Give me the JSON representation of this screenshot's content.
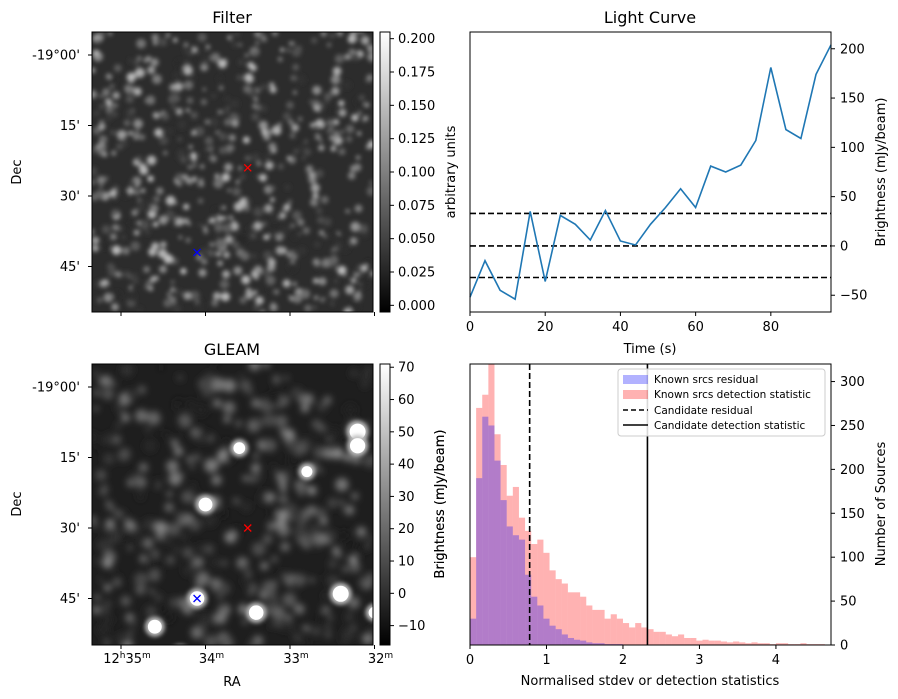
{
  "chart_data": [
    {
      "type": "heatmap",
      "title": "Filter",
      "ylabel": "Dec",
      "yticks": [
        "-19°00'",
        "15'",
        "30'",
        "45'"
      ],
      "colorbar": {
        "label": "arbitrary units",
        "ticks": [
          "0.000",
          "0.025",
          "0.050",
          "0.075",
          "0.100",
          "0.125",
          "0.150",
          "0.175",
          "0.200"
        ],
        "range": [
          -0.005,
          0.205
        ]
      },
      "markers": [
        {
          "symbol": "x",
          "color": "#ff0000",
          "ra_min": 33.5,
          "dec_arcmin": 24
        },
        {
          "symbol": "x",
          "color": "#0000ff",
          "ra_min": 34.1,
          "dec_arcmin": 42
        }
      ],
      "colormap": "gray"
    },
    {
      "type": "line",
      "title": "Light Curve",
      "xlabel": "Time (s)",
      "ylabel": "Brightness (mJy/beam)",
      "xlim": [
        0,
        96
      ],
      "ylim": [
        -67,
        217
      ],
      "xticks": [
        "0",
        "20",
        "40",
        "60",
        "80"
      ],
      "yticks": [
        "-50",
        "0",
        "50",
        "100",
        "150",
        "200"
      ],
      "series": [
        {
          "color": "#1f77b4",
          "x": [
            0,
            4,
            8,
            12,
            16,
            20,
            24,
            28,
            32,
            36,
            40,
            44,
            48,
            52,
            56,
            60,
            64,
            68,
            72,
            76,
            80,
            84,
            88,
            92,
            96
          ],
          "y": [
            -52,
            -15,
            -45,
            -54,
            35,
            -36,
            31,
            22,
            6,
            36,
            5,
            1,
            22,
            39,
            58,
            39,
            81,
            75,
            82,
            107,
            181,
            118,
            109,
            174,
            204
          ]
        }
      ],
      "hlines": [
        {
          "y": 33,
          "style": "dashed",
          "color": "#000000"
        },
        {
          "y": 0,
          "style": "dashed",
          "color": "#000000"
        },
        {
          "y": -32,
          "style": "dashed",
          "color": "#000000"
        }
      ]
    },
    {
      "type": "heatmap",
      "title": "GLEAM",
      "xlabel": "RA",
      "ylabel": "Dec",
      "xticks": [
        {
          "h": "12",
          "hs": "h",
          "m": "35",
          "ms": "m"
        },
        {
          "h": "",
          "hs": "",
          "m": "34",
          "ms": "m"
        },
        {
          "h": "",
          "hs": "",
          "m": "33",
          "ms": "m"
        },
        {
          "h": "",
          "hs": "",
          "m": "32",
          "ms": "m"
        }
      ],
      "yticks": [
        "-19°00'",
        "15'",
        "30'",
        "45'"
      ],
      "colorbar": {
        "label": "Brightness (mJy/beam)",
        "ticks": [
          "−10",
          "0",
          "10",
          "20",
          "30",
          "40",
          "50",
          "60",
          "70"
        ],
        "range": [
          -16,
          71
        ]
      },
      "sources": [
        {
          "ra_min": 32.2,
          "dec_arcmin": 9.5,
          "flux": 70
        },
        {
          "ra_min": 32.2,
          "dec_arcmin": 12.5,
          "flux": 65
        },
        {
          "ra_min": 34.0,
          "dec_arcmin": 25,
          "flux": 55
        },
        {
          "ra_min": 32.4,
          "dec_arcmin": 44,
          "flux": 70
        },
        {
          "ra_min": 33.4,
          "dec_arcmin": 48,
          "flux": 60
        },
        {
          "ra_min": 34.1,
          "dec_arcmin": 45,
          "flux": 60
        },
        {
          "ra_min": 34.6,
          "dec_arcmin": 51,
          "flux": 55
        },
        {
          "ra_min": 34.3,
          "dec_arcmin": 57,
          "flux": 60
        },
        {
          "ra_min": 31.6,
          "dec_arcmin": 29,
          "flux": 55
        },
        {
          "ra_min": 31.6,
          "dec_arcmin": 34,
          "flux": 60
        },
        {
          "ra_min": 33.6,
          "dec_arcmin": 13,
          "flux": 40
        },
        {
          "ra_min": 32.8,
          "dec_arcmin": 18,
          "flux": 35
        },
        {
          "ra_min": 31.7,
          "dec_arcmin": 57,
          "flux": 50
        },
        {
          "ra_min": 32.0,
          "dec_arcmin": 48,
          "flux": 40
        }
      ],
      "markers": [
        {
          "symbol": "x",
          "color": "#ff0000",
          "ra_min": 33.5,
          "dec_arcmin": 30
        },
        {
          "symbol": "x",
          "color": "#0000ff",
          "ra_min": 34.1,
          "dec_arcmin": 45
        }
      ],
      "colormap": "gray"
    },
    {
      "type": "bar",
      "xlabel": "Normalised stdev or detection statistics",
      "ylabel_left": "Brightness (mJy/beam)",
      "ylabel": "Number of Sources",
      "xlim": [
        0,
        4.72
      ],
      "ylim": [
        0,
        320
      ],
      "xticks": [
        "0",
        "1",
        "2",
        "3",
        "4"
      ],
      "yticks": [
        "0",
        "50",
        "100",
        "150",
        "200",
        "250",
        "300"
      ],
      "legend": {
        "placement": "top-right",
        "entries": [
          "Known srcs residual",
          "Known srcs detection statistic",
          "Candidate residual",
          "Candidate detection statistic"
        ]
      },
      "bin_width": 0.08,
      "series": [
        {
          "name": "Known srcs residual",
          "color": "#0000ff",
          "opacity": 0.3,
          "bin_start": 0.0,
          "values": [
            30,
            190,
            260,
            250,
            210,
            165,
            135,
            125,
            120,
            80,
            55,
            45,
            30,
            22,
            18,
            12,
            8,
            6,
            5,
            3,
            2,
            2,
            1,
            1,
            1
          ]
        },
        {
          "name": "Known srcs detection statistic",
          "color": "#ff0000",
          "opacity": 0.3,
          "bin_start": 0.0,
          "values": [
            100,
            270,
            285,
            320,
            240,
            205,
            170,
            180,
            145,
            130,
            115,
            120,
            105,
            85,
            75,
            70,
            60,
            60,
            55,
            45,
            40,
            40,
            30,
            35,
            30,
            25,
            20,
            25,
            20,
            18,
            15,
            15,
            12,
            10,
            12,
            8,
            8,
            5,
            6,
            5,
            5,
            4,
            3,
            4,
            3,
            2,
            3,
            2,
            2,
            1,
            2,
            2,
            1,
            1,
            2,
            1,
            1,
            1
          ]
        }
      ],
      "vlines": [
        {
          "name": "Candidate residual",
          "x": 0.78,
          "style": "dashed"
        },
        {
          "name": "Candidate detection statistic",
          "x": 2.32,
          "style": "solid"
        }
      ]
    }
  ]
}
